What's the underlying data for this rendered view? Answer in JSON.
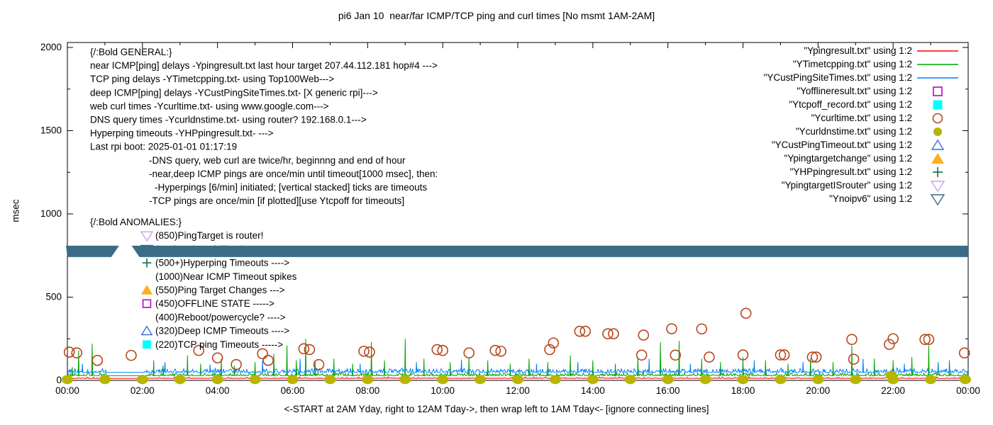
{
  "title": "pi6 Jan 10  near/far ICMP/TCP ping and curl times [No msmt 1AM-2AM]",
  "xlabel": "<-START at 2AM Yday, right to 12AM Tday->, then wrap left to 1AM Tday<- [ignore connecting lines]",
  "ylabel": "msec",
  "chart_data": {
    "type": "line",
    "x_axis": {
      "tick_labels": [
        "00:00",
        "02:00",
        "04:00",
        "06:00",
        "08:00",
        "10:00",
        "12:00",
        "14:00",
        "16:00",
        "18:00",
        "20:00",
        "22:00",
        "00:00"
      ],
      "hours_span": 24,
      "minor_tick_every_hours": 1,
      "grid": false
    },
    "y_axis": {
      "tick_labels": [
        "0",
        "500",
        "1000",
        "1500",
        "2000"
      ],
      "tick_values": [
        0,
        500,
        1000,
        1500,
        2000
      ],
      "minor_tick_values": [
        250,
        750,
        1250,
        1750
      ],
      "range": [
        0,
        2000
      ],
      "label": "msec"
    },
    "legend": {
      "position": "top-right",
      "entries": [
        {
          "label": "\"Ypingresult.txt\" using 1:2",
          "marker": "line",
          "color": "#ff0000"
        },
        {
          "label": "\"YTimetcpping.txt\" using 1:2",
          "marker": "line",
          "color": "#00a500"
        },
        {
          "label": "\"YCustPingSiteTimes.txt\" using 1:2",
          "marker": "line",
          "color": "#0080ff"
        },
        {
          "label": "\"Yofflineresult.txt\" using 1:2",
          "marker": "square-open",
          "color": "#bf00bf"
        },
        {
          "label": "\"Ytcpoff_record.txt\" using 1:2",
          "marker": "square-filled",
          "color": "#00ffff"
        },
        {
          "label": "\"Ycurltime.txt\" using 1:2",
          "marker": "circle-open",
          "color": "#b8461b"
        },
        {
          "label": "\"Ycurldnstime.txt\" using 1:2",
          "marker": "circle-filled",
          "color": "#b9b400"
        },
        {
          "label": "\"YCustPingTimeout.txt\" using 1:2",
          "marker": "tri-up-open",
          "color": "#4169e1"
        },
        {
          "label": "\"Ypingtargetchange\" using 1:2",
          "marker": "tri-up-filled",
          "color": "#ffac1e"
        },
        {
          "label": "\"YHPpingresult.txt\" using 1:2",
          "marker": "plus",
          "color": "#156b4b"
        },
        {
          "label": "\"YpingtargetISrouter\" using 1:2",
          "marker": "tri-down-open",
          "color": "#cfa0f2"
        },
        {
          "label": "\"Ynoipv6\" using 1:2",
          "marker": "tri-down-open",
          "color": "#3a6b87"
        }
      ]
    },
    "annotations": {
      "general": [
        {
          "text": "{/:Bold GENERAL:}",
          "indent": 0
        },
        {
          "text": "near ICMP[ping] delays -Ypingresult.txt last hour target 207.44.112.181 hop#4 --->",
          "indent": 0
        },
        {
          "text": "TCP ping delays -YTimetcpping.txt- using Top100Web--->",
          "indent": 0
        },
        {
          "text": "deep ICMP[ping] delays -YCustPingSiteTimes.txt- [X generic rpi]--->",
          "indent": 0
        },
        {
          "text": "web curl times -Ycurltime.txt- using www.google.com--->",
          "indent": 0
        },
        {
          "text": "DNS query times -Ycurldnstime.txt- using router? 192.168.0.1--->",
          "indent": 0
        },
        {
          "text": "Hyperping timeouts -YHPpingresult.txt- --->",
          "indent": 0
        },
        {
          "text": "Last rpi boot: 2025-01-01 01:17:19",
          "indent": 0
        },
        {
          "text": "-DNS query, web curl are twice/hr, beginnng and end of hour",
          "indent": 1
        },
        {
          "text": "-near,deep ICMP pings are once/min until timeout[1000 msec], then:",
          "indent": 1
        },
        {
          "text": "-Hyperpings [6/min] initiated; [vertical stacked] ticks are timeouts",
          "indent": 2
        },
        {
          "text": "-TCP pings are once/min [if plotted][use Ytcpoff for timeouts]",
          "indent": 1
        }
      ],
      "anomalies": [
        {
          "text": "{/:Bold ANOMALIES:}",
          "marker": null,
          "color": null,
          "indent": 0
        },
        {
          "text": "(850)PingTarget is router!",
          "marker": "tri-down-open",
          "color": "#cfa0f2",
          "indent": 1
        },
        {
          "text": "(775)No ipv6 fallback --->",
          "marker": "tri-down-open",
          "color": "#3a6b87",
          "indent": 1
        },
        {
          "text": "(500+)Hyperping Timeouts ---->",
          "marker": "plus",
          "color": "#156b4b",
          "indent": 1
        },
        {
          "text": "(1000)Near ICMP Timeout spikes",
          "marker": null,
          "color": null,
          "indent": 1
        },
        {
          "text": "(550)Ping Target Changes --->",
          "marker": "tri-up-filled",
          "color": "#ffac1e",
          "indent": 1
        },
        {
          "text": "(450)OFFLINE STATE ----->",
          "marker": "square-open",
          "color": "#bf00bf",
          "indent": 1
        },
        {
          "text": "(400)Reboot/powercycle? ---->",
          "marker": null,
          "color": null,
          "indent": 1
        },
        {
          "text": "(320)Deep ICMP Timeouts ---->",
          "marker": "tri-up-open",
          "color": "#4169e1",
          "indent": 1
        },
        {
          "text": "(220)TCP ping Timeouts ----->",
          "marker": "square-filled",
          "color": "#00ffff",
          "indent": 1
        }
      ]
    },
    "series": {
      "ping_near": {
        "name": "Ypingresult.txt",
        "style": "line",
        "color": "#ff0000",
        "baseline_msec": 12,
        "noise_msec": 3,
        "flat_window_hours": [
          1.05,
          2.05
        ],
        "spikes": []
      },
      "tcp_ping": {
        "name": "YTimetcpping.txt",
        "style": "line",
        "color": "#00a500",
        "baseline_msec": 28,
        "noise_msec": 16,
        "flat_window_hours": [
          1.05,
          2.05
        ],
        "spikes": [
          [
            0.13,
            80
          ],
          [
            0.3,
            180
          ],
          [
            0.66,
            220
          ],
          [
            2.3,
            120
          ],
          [
            2.55,
            90
          ],
          [
            3.2,
            150
          ],
          [
            3.55,
            100
          ],
          [
            4.1,
            130
          ],
          [
            4.45,
            90
          ],
          [
            5.0,
            110
          ],
          [
            5.5,
            160
          ],
          [
            5.85,
            210
          ],
          [
            6.1,
            120
          ],
          [
            6.35,
            250
          ],
          [
            6.6,
            110
          ],
          [
            7.1,
            130
          ],
          [
            7.6,
            100
          ],
          [
            8.1,
            230
          ],
          [
            8.45,
            120
          ],
          [
            9.0,
            250
          ],
          [
            9.5,
            130
          ],
          [
            10.2,
            110
          ],
          [
            10.7,
            140
          ],
          [
            11.2,
            120
          ],
          [
            11.8,
            100
          ],
          [
            12.3,
            130
          ],
          [
            12.8,
            110
          ],
          [
            13.4,
            150
          ],
          [
            14.0,
            120
          ],
          [
            14.6,
            100
          ],
          [
            15.2,
            140
          ],
          [
            15.8,
            230
          ],
          [
            16.3,
            237
          ],
          [
            16.9,
            130
          ],
          [
            17.4,
            110
          ],
          [
            18.0,
            140
          ],
          [
            18.6,
            120
          ],
          [
            19.2,
            100
          ],
          [
            19.8,
            130
          ],
          [
            20.4,
            110
          ],
          [
            20.9,
            210
          ],
          [
            21.5,
            130
          ],
          [
            22.0,
            120
          ],
          [
            22.5,
            140
          ],
          [
            22.95,
            210
          ],
          [
            23.5,
            120
          ]
        ]
      },
      "deep_ping": {
        "name": "YCustPingSiteTimes.txt",
        "style": "line",
        "color": "#0080ff",
        "baseline_msec": 48,
        "noise_msec": 22,
        "flat_window_hours": [
          1.05,
          2.05
        ],
        "spikes": [
          [
            0.4,
            100
          ],
          [
            2.6,
            110
          ],
          [
            3.8,
            95
          ],
          [
            5.2,
            120
          ],
          [
            6.2,
            130
          ],
          [
            7.8,
            100
          ],
          [
            9.3,
            110
          ],
          [
            10.5,
            125
          ],
          [
            12.5,
            100
          ],
          [
            13.6,
            110
          ],
          [
            15.5,
            130
          ],
          [
            16.6,
            100
          ],
          [
            18.3,
            120
          ],
          [
            19.6,
            110
          ],
          [
            21.2,
            130
          ],
          [
            22.3,
            100
          ],
          [
            23.2,
            110
          ]
        ]
      },
      "curl": {
        "name": "Ycurltime.txt",
        "style": "open-circle",
        "color": "#b8461b",
        "points": [
          [
            0.05,
            170
          ],
          [
            0.25,
            165
          ],
          [
            0.8,
            120
          ],
          [
            1.7,
            150
          ],
          [
            3.5,
            180
          ],
          [
            4.0,
            135
          ],
          [
            4.5,
            95
          ],
          [
            5.2,
            160
          ],
          [
            5.35,
            120
          ],
          [
            6.3,
            190
          ],
          [
            6.45,
            185
          ],
          [
            6.7,
            95
          ],
          [
            7.9,
            175
          ],
          [
            8.05,
            170
          ],
          [
            9.85,
            185
          ],
          [
            10.0,
            180
          ],
          [
            10.7,
            165
          ],
          [
            11.4,
            180
          ],
          [
            11.55,
            175
          ],
          [
            12.85,
            185
          ],
          [
            12.95,
            225
          ],
          [
            13.65,
            295
          ],
          [
            13.8,
            295
          ],
          [
            14.4,
            280
          ],
          [
            14.55,
            280
          ],
          [
            15.3,
            152
          ],
          [
            15.35,
            272
          ],
          [
            16.1,
            310
          ],
          [
            16.2,
            152
          ],
          [
            16.9,
            309
          ],
          [
            17.1,
            140
          ],
          [
            18.0,
            153
          ],
          [
            18.08,
            403
          ],
          [
            19.0,
            153
          ],
          [
            19.1,
            153
          ],
          [
            19.85,
            140
          ],
          [
            19.95,
            140
          ],
          [
            20.9,
            246
          ],
          [
            20.95,
            127
          ],
          [
            21.9,
            216
          ],
          [
            22.0,
            250
          ],
          [
            22.85,
            246
          ],
          [
            22.95,
            246
          ],
          [
            23.9,
            165
          ]
        ]
      },
      "dns": {
        "name": "Ycurldnstime.txt",
        "style": "filled-circle",
        "color": "#b9b400",
        "points": [
          [
            0,
            5
          ],
          [
            1,
            5
          ],
          [
            2,
            5
          ],
          [
            3,
            5
          ],
          [
            4,
            5
          ],
          [
            5,
            5
          ],
          [
            6,
            5
          ],
          [
            7,
            5
          ],
          [
            8,
            5
          ],
          [
            9,
            5
          ],
          [
            10,
            5
          ],
          [
            11,
            5
          ],
          [
            12,
            5
          ],
          [
            13,
            5
          ],
          [
            14,
            5
          ],
          [
            15,
            5
          ],
          [
            16,
            5
          ],
          [
            17,
            5
          ],
          [
            18,
            5
          ],
          [
            19,
            5
          ],
          [
            20,
            5
          ],
          [
            21,
            5
          ],
          [
            21.95,
            30
          ],
          [
            22,
            5
          ],
          [
            23,
            5
          ],
          [
            24,
            5
          ]
        ]
      },
      "noipv6_band": {
        "name": "Ynoipv6",
        "style": "down-triangle-band",
        "color": "#3a6b87",
        "value_msec": 775,
        "segments_hours": [
          [
            0,
            1.17
          ],
          [
            1.92,
            24
          ]
        ]
      },
      "offline": {
        "name": "Yofflineresult.txt",
        "style": "open-square",
        "color": "#bf00bf",
        "points": []
      },
      "tcpoff": {
        "name": "Ytcpoff_record.txt",
        "style": "filled-square",
        "color": "#00ffff",
        "points": []
      },
      "deep_timeout": {
        "name": "YCustPingTimeout.txt",
        "style": "tri-up-open",
        "color": "#4169e1",
        "points": []
      },
      "target_change": {
        "name": "Ypingtargetchange",
        "style": "tri-up-filled",
        "color": "#ffac1e",
        "points": []
      },
      "hyperping": {
        "name": "YHPpingresult.txt",
        "style": "plus",
        "color": "#156b4b",
        "points": []
      },
      "target_is_router": {
        "name": "YpingtargetISrouter",
        "style": "tri-down-open",
        "color": "#cfa0f2",
        "points": []
      }
    }
  }
}
